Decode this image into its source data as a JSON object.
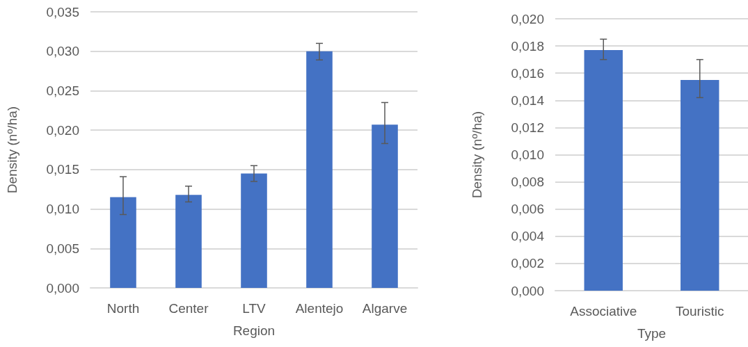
{
  "chart_data": [
    {
      "type": "bar",
      "xlabel": "Region",
      "ylabel": "Density (nº/ha)",
      "categories": [
        "North",
        "Center",
        "LTV",
        "Alentejo",
        "Algarve"
      ],
      "values": [
        0.0115,
        0.0118,
        0.0145,
        0.03,
        0.0207
      ],
      "errors": [
        [
          0.0093,
          0.0141
        ],
        [
          0.0109,
          0.0129
        ],
        [
          0.0135,
          0.0155
        ],
        [
          0.0289,
          0.031
        ],
        [
          0.0183,
          0.0235
        ]
      ],
      "color": "#4472c4",
      "ylim": [
        0,
        0.035
      ],
      "yticks": [
        {
          "value": 0,
          "label": "0,000"
        },
        {
          "value": 0.005,
          "label": "0,005"
        },
        {
          "value": 0.01,
          "label": "0,010"
        },
        {
          "value": 0.015,
          "label": "0,015"
        },
        {
          "value": 0.02,
          "label": "0,020"
        },
        {
          "value": 0.025,
          "label": "0,025"
        },
        {
          "value": 0.03,
          "label": "0,030"
        },
        {
          "value": 0.035,
          "label": "0,035"
        }
      ],
      "grid": "y"
    },
    {
      "type": "bar",
      "xlabel": "Type",
      "ylabel": "Density (nº/ha)",
      "categories": [
        "Associative",
        "Touristic"
      ],
      "values": [
        0.0177,
        0.0155
      ],
      "errors": [
        [
          0.017,
          0.0185
        ],
        [
          0.0142,
          0.017
        ]
      ],
      "color": "#4472c4",
      "ylim": [
        0,
        0.02
      ],
      "yticks": [
        {
          "value": 0,
          "label": "0,000"
        },
        {
          "value": 0.002,
          "label": "0,002"
        },
        {
          "value": 0.004,
          "label": "0,004"
        },
        {
          "value": 0.006,
          "label": "0,006"
        },
        {
          "value": 0.008,
          "label": "0,008"
        },
        {
          "value": 0.01,
          "label": "0,010"
        },
        {
          "value": 0.012,
          "label": "0,012"
        },
        {
          "value": 0.014,
          "label": "0,014"
        },
        {
          "value": 0.016,
          "label": "0,016"
        },
        {
          "value": 0.018,
          "label": "0,018"
        },
        {
          "value": 0.02,
          "label": "0,020"
        }
      ],
      "grid": "y"
    }
  ]
}
